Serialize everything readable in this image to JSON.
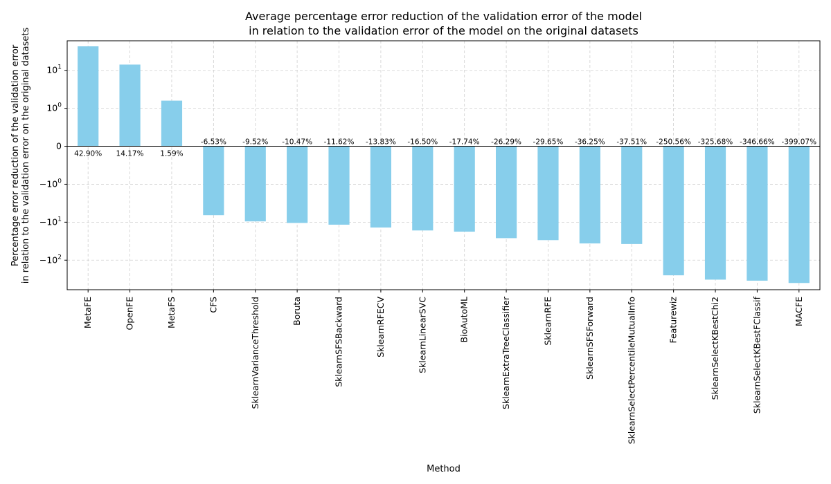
{
  "chart_data": {
    "type": "bar",
    "title": [
      "Average percentage error reduction of the validation error of the model",
      "in relation to the validation error of the model on the original datasets"
    ],
    "xlabel": "Method",
    "ylabel": [
      "Percentage error reduction of the validation error",
      "in relation to the validation error on the original datasets"
    ],
    "yscale": "symlog",
    "ylim": [
      -600,
      60
    ],
    "grid": true,
    "bar_color": "#87CEEB",
    "categories": [
      "MetaFE",
      "OpenFE",
      "MetaFS",
      "CFS",
      "SklearnVarianceThreshold",
      "Boruta",
      "SklearnSFSBackward",
      "SklearnRFECV",
      "SklearnLinearSVC",
      "BioAutoML",
      "SklearnExtraTreeClassifier",
      "SklearnRFE",
      "SklearnSFSForward",
      "SklearnSelectPercentileMutualInfo",
      "Featurewiz",
      "SklearnSelectKBestChi2",
      "SklearnSelectKBestFClassif",
      "MACFE"
    ],
    "values": [
      42.9,
      14.17,
      1.59,
      -6.53,
      -9.52,
      -10.47,
      -11.62,
      -13.83,
      -16.5,
      -17.74,
      -26.29,
      -29.65,
      -36.25,
      -37.51,
      -250.56,
      -325.68,
      -346.66,
      -399.07
    ],
    "data_labels": [
      "42.90%",
      "14.17%",
      "1.59%",
      "-6.53%",
      "-9.52%",
      "-10.47%",
      "-11.62%",
      "-13.83%",
      "-16.50%",
      "-17.74%",
      "-26.29%",
      "-29.65%",
      "-36.25%",
      "-37.51%",
      "-250.56%",
      "-325.68%",
      "-346.66%",
      "-399.07%"
    ],
    "yticks": [
      {
        "value": 10,
        "base": "10",
        "exp": "1"
      },
      {
        "value": 1,
        "base": "10",
        "exp": "0"
      },
      {
        "value": 0,
        "base": "0",
        "exp": ""
      },
      {
        "value": -1,
        "base": "−10",
        "exp": "0"
      },
      {
        "value": -10,
        "base": "−10",
        "exp": "1"
      },
      {
        "value": -100,
        "base": "−10",
        "exp": "2"
      }
    ]
  }
}
